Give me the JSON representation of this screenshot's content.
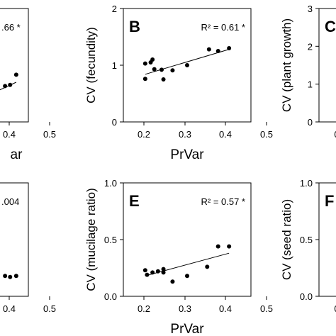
{
  "chart_data": [
    {
      "id": "left-top",
      "type": "scatter",
      "letter": "",
      "annotation": ".66 *",
      "xlabel": "ar",
      "ylabel": "",
      "xticks": [
        "0.4",
        "0.5"
      ],
      "xlim": [
        0.15,
        0.5
      ],
      "yticks": [],
      "ylim": [
        0,
        3
      ],
      "points": [
        [
          0.385,
          0.95
        ],
        [
          0.41,
          0.98
        ],
        [
          0.44,
          1.25
        ]
      ],
      "trend": [
        [
          0.2,
          0.45
        ],
        [
          0.44,
          1.05
        ]
      ]
    },
    {
      "id": "B",
      "type": "scatter",
      "letter": "B",
      "annotation": "R² = 0.61 *",
      "xlabel": "PrVar",
      "ylabel": "CV (fecundity)",
      "xticks": [
        "0.2",
        "0.3",
        "0.4",
        "0.5"
      ],
      "xlim": [
        0.15,
        0.5
      ],
      "yticks": [
        "0",
        "1",
        "2"
      ],
      "ylim": [
        0,
        2
      ],
      "points": [
        [
          0.21,
          0.76
        ],
        [
          0.21,
          1.03
        ],
        [
          0.225,
          1.05
        ],
        [
          0.23,
          1.1
        ],
        [
          0.235,
          0.93
        ],
        [
          0.255,
          0.92
        ],
        [
          0.26,
          0.75
        ],
        [
          0.285,
          0.91
        ],
        [
          0.325,
          1.0
        ],
        [
          0.385,
          1.28
        ],
        [
          0.41,
          1.25
        ],
        [
          0.44,
          1.3
        ]
      ],
      "trend": [
        [
          0.21,
          0.84
        ],
        [
          0.44,
          1.28
        ]
      ]
    },
    {
      "id": "C",
      "type": "scatter",
      "letter": "C",
      "annotation": "",
      "xlabel": "",
      "ylabel": "CV (plant growth)",
      "xticks": [
        "0"
      ],
      "xlim": [
        0.15,
        0.5
      ],
      "yticks": [
        "0",
        "1",
        "2",
        "3"
      ],
      "ylim": [
        0,
        3
      ],
      "points": [],
      "trend": []
    },
    {
      "id": "left-bottom",
      "type": "scatter",
      "letter": "",
      "annotation": ".004",
      "xlabel": "",
      "ylabel": "",
      "xticks": [
        "0.4",
        "0.5"
      ],
      "xlim": [
        0.15,
        0.5
      ],
      "yticks": [],
      "ylim": [
        0,
        1
      ],
      "points": [
        [
          0.385,
          0.18
        ],
        [
          0.41,
          0.17
        ],
        [
          0.44,
          0.18
        ]
      ],
      "trend": []
    },
    {
      "id": "E",
      "type": "scatter",
      "letter": "E",
      "annotation": "R² = 0.57 *",
      "xlabel": "PrVar",
      "ylabel": "CV (mucilage ratio)",
      "xticks": [
        "0.2",
        "0.3",
        "0.4",
        "0.5"
      ],
      "xlim": [
        0.15,
        0.5
      ],
      "yticks": [
        "0.0",
        "0.5",
        "1.0"
      ],
      "ylim": [
        0,
        1
      ],
      "points": [
        [
          0.21,
          0.23
        ],
        [
          0.215,
          0.19
        ],
        [
          0.23,
          0.21
        ],
        [
          0.245,
          0.22
        ],
        [
          0.26,
          0.24
        ],
        [
          0.26,
          0.21
        ],
        [
          0.285,
          0.13
        ],
        [
          0.325,
          0.18
        ],
        [
          0.38,
          0.26
        ],
        [
          0.41,
          0.44
        ],
        [
          0.44,
          0.44
        ]
      ],
      "trend": [
        [
          0.21,
          0.18
        ],
        [
          0.44,
          0.38
        ]
      ]
    },
    {
      "id": "F",
      "type": "scatter",
      "letter": "F",
      "annotation": "",
      "xlabel": "",
      "ylabel": "CV (seed ratio)",
      "xticks": [
        "0"
      ],
      "xlim": [
        0.15,
        0.5
      ],
      "yticks": [
        "0.0",
        "0.5",
        "1.0"
      ],
      "ylim": [
        0,
        1
      ],
      "points": [],
      "trend": []
    }
  ]
}
